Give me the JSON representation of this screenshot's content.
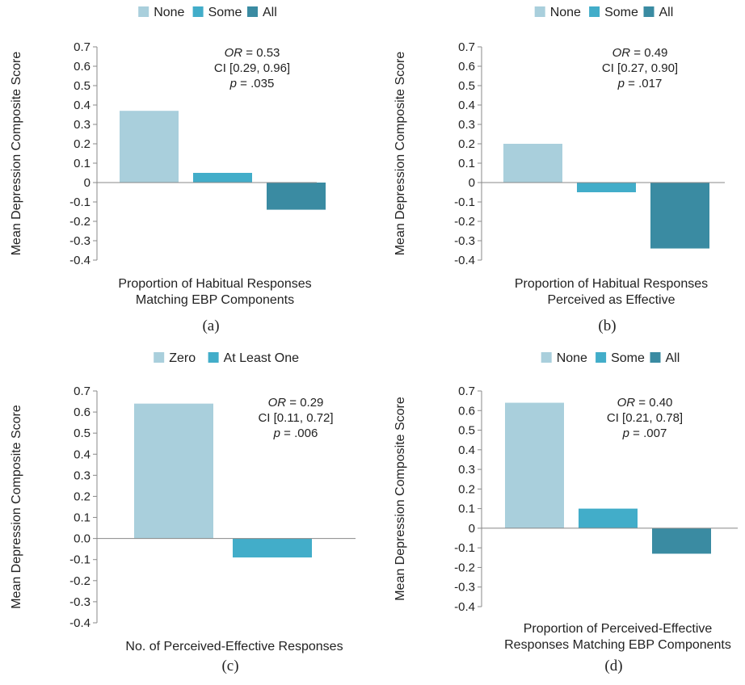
{
  "colors": {
    "None": "#a9cfdc",
    "Some": "#42adc9",
    "All": "#3a8ba2",
    "Zero": "#a9cfdc",
    "At Least One": "#42adc9",
    "axis": "#888888"
  },
  "chart_data": [
    {
      "type": "bar",
      "panel_label": "(a)",
      "ylabel": "Mean Depression Composite Score",
      "xlabel": [
        "Proportion of Habitual Responses",
        "Matching EBP Components"
      ],
      "ylim": [
        -0.4,
        0.7
      ],
      "yticks": [
        "0.7",
        "0.6",
        "0.5",
        "0.4",
        "0.3",
        "0.2",
        "0.1",
        "0",
        "-0.1",
        "-0.2",
        "-0.3",
        "-0.4"
      ],
      "series": [
        {
          "name": "None",
          "value": 0.37
        },
        {
          "name": "Some",
          "value": 0.05
        },
        {
          "name": "All",
          "value": -0.14
        }
      ],
      "annotation": {
        "or_label": "OR",
        "or_value": " = 0.53",
        "ci": "CI [0.29, 0.96]",
        "p_label": "p",
        "p_value": " = .035"
      }
    },
    {
      "type": "bar",
      "panel_label": "(b)",
      "ylabel": "Mean Depression Composite Score",
      "xlabel": [
        "Proportion of Habitual Responses",
        "Perceived as Effective"
      ],
      "ylim": [
        -0.4,
        0.7
      ],
      "yticks": [
        "0.7",
        "0.6",
        "0.5",
        "0.4",
        "0.3",
        "0.2",
        "0.1",
        "0",
        "-0.1",
        "-0.2",
        "-0.3",
        "-0.4"
      ],
      "series": [
        {
          "name": "None",
          "value": 0.2
        },
        {
          "name": "Some",
          "value": -0.05
        },
        {
          "name": "All",
          "value": -0.34
        }
      ],
      "annotation": {
        "or_label": "OR",
        "or_value": " = 0.49",
        "ci": "CI [0.27, 0.90]",
        "p_label": "p",
        "p_value": " = .017"
      }
    },
    {
      "type": "bar",
      "panel_label": "(c)",
      "ylabel": "Mean Depression Composite Score",
      "xlabel": [
        "No. of Perceived-Effective Responses"
      ],
      "ylim": [
        -0.4,
        0.7
      ],
      "yticks": [
        "0.7",
        "0.6",
        "0.5",
        "0.4",
        "0.3",
        "0.2",
        "0.1",
        "0.0",
        "-0.1",
        "-0.2",
        "-0.3",
        "-0.4"
      ],
      "series": [
        {
          "name": "Zero",
          "value": 0.64
        },
        {
          "name": "At Least One",
          "value": -0.09
        }
      ],
      "annotation": {
        "or_label": "OR",
        "or_value": " = 0.29",
        "ci": "CI [0.11, 0.72]",
        "p_label": "p",
        "p_value": " = .006"
      }
    },
    {
      "type": "bar",
      "panel_label": "(d)",
      "ylabel": "Mean Depression Composite Score",
      "xlabel": [
        "Proportion of Perceived-Effective",
        "Responses Matching EBP Components"
      ],
      "ylim": [
        -0.4,
        0.7
      ],
      "yticks": [
        "0.7",
        "0.6",
        "0.5",
        "0.4",
        "0.3",
        "0.2",
        "0.1",
        "0",
        "-0.1",
        "-0.2",
        "-0.3",
        "-0.4"
      ],
      "series": [
        {
          "name": "None",
          "value": 0.64
        },
        {
          "name": "Some",
          "value": 0.1
        },
        {
          "name": "All",
          "value": -0.13
        }
      ],
      "annotation": {
        "or_label": "OR",
        "or_value": " = 0.40",
        "ci": "CI [0.21, 0.78]",
        "p_label": "p",
        "p_value": " = .007"
      }
    }
  ]
}
